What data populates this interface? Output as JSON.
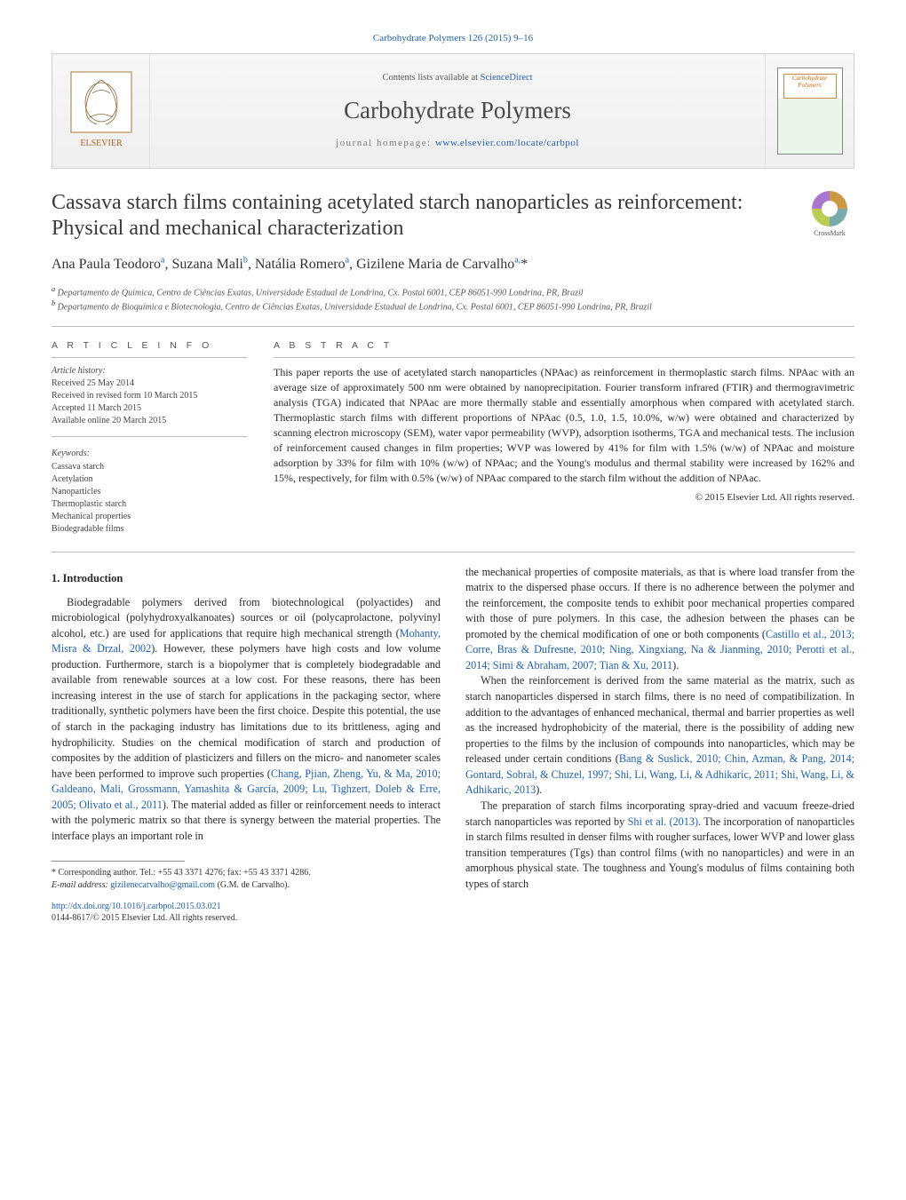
{
  "citation": "Carbohydrate Polymers 126 (2015) 9–16",
  "banner": {
    "contents_prefix": "Contents lists available at ",
    "contents_link": "ScienceDirect",
    "journal": "Carbohydrate Polymers",
    "homepage_prefix": "journal homepage: ",
    "homepage_url": "www.elsevier.com/locate/carbpol",
    "publisher_logo_label": "ELSEVIER"
  },
  "article": {
    "title": "Cassava starch films containing acetylated starch nanoparticles as reinforcement: Physical and mechanical characterization",
    "crossmark_label": "CrossMark"
  },
  "authors": {
    "line_html": "Ana Paula Teodoro<sup>a</sup>, Suzana Mali<sup>b</sup>, Natália Romero<sup>a</sup>, Gizilene Maria de Carvalho<sup>a,</sup>*"
  },
  "affiliations": [
    "a Departamento de Química, Centro de Ciências Exatas, Universidade Estadual de Londrina, Cx. Postal 6001, CEP 86051-990 Londrina, PR, Brazil",
    "b Departamento de Bioquímica e Biotecnologia, Centro de Ciências Exatas, Universidade Estadual de Londrina, Cx. Postal 6001, CEP 86051-990 Londrina, PR, Brazil"
  ],
  "info": {
    "label": "A R T I C L E   I N F O",
    "history_head": "Article history:",
    "history": [
      "Received 25 May 2014",
      "Received in revised form 10 March 2015",
      "Accepted 11 March 2015",
      "Available online 20 March 2015"
    ],
    "keywords_head": "Keywords:",
    "keywords": [
      "Cassava starch",
      "Acetylation",
      "Nanoparticles",
      "Thermoplastic starch",
      "Mechanical properties",
      "Biodegradable films"
    ]
  },
  "abstract": {
    "label": "A B S T R A C T",
    "text": "This paper reports the use of acetylated starch nanoparticles (NPAac) as reinforcement in thermoplastic starch films. NPAac with an average size of approximately 500 nm were obtained by nanoprecipitation. Fourier transform infrared (FTIR) and thermogravimetric analysis (TGA) indicated that NPAac are more thermally stable and essentially amorphous when compared with acetylated starch. Thermoplastic starch films with different proportions of NPAac (0.5, 1.0, 1.5, 10.0%, w/w) were obtained and characterized by scanning electron microscopy (SEM), water vapor permeability (WVP), adsorption isotherms, TGA and mechanical tests. The inclusion of reinforcement caused changes in film properties; WVP was lowered by 41% for film with 1.5% (w/w) of NPAac and moisture adsorption by 33% for film with 10% (w/w) of NPAac; and the Young's modulus and thermal stability were increased by 162% and 15%, respectively, for film with 0.5% (w/w) of NPAac compared to the starch film without the addition of NPAac.",
    "copyright": "© 2015 Elsevier Ltd. All rights reserved."
  },
  "introduction": {
    "heading": "1. Introduction",
    "paragraphs": [
      "Biodegradable polymers derived from biotechnological (polyactides) and microbiological (polyhydroxyalkanoates) sources or oil (polycaprolactone, polyvinyl alcohol, etc.) are used for applications that require high mechanical strength (<span class=\"ref-link\">Mohanty, Misra & Drzal, 2002</span>). However, these polymers have high costs and low volume production. Furthermore, starch is a biopolymer that is completely biodegradable and available from renewable sources at a low cost. For these reasons, there has been increasing interest in the use of starch for applications in the packaging sector, where traditionally, synthetic polymers have been the first choice. Despite this potential, the use of starch in the packaging industry has limitations due to its brittleness, aging and hydrophilicity. Studies on the chemical modification of starch and production of composites by the addition of plasticizers and fillers on the micro- and nanometer scales have been performed to improve such properties (<span class=\"ref-link\">Chang, Pjian, Zheng, Yu, & Ma, 2010; Galdeano, Mali, Grossmann, Yamashita & García, 2009; Lu, Tighzert, Doleb & Erre, 2005; Olivato et al., 2011</span>). The material added as filler or reinforcement needs to interact with the polymeric matrix so that there is synergy between the material properties. The interface plays an important role in",
      "the mechanical properties of composite materials, as that is where load transfer from the matrix to the dispersed phase occurs. If there is no adherence between the polymer and the reinforcement, the composite tends to exhibit poor mechanical properties compared with those of pure polymers. In this case, the adhesion between the phases can be promoted by the chemical modification of one or both components (<span class=\"ref-link\">Castillo et al., 2013; Corre, Bras & Dufresne, 2010; Ning, Xingxiang, Na & Jianming, 2010; Perotti et al., 2014; Simi & Abraham, 2007; Tian & Xu, 2011</span>).",
      "When the reinforcement is derived from the same material as the matrix, such as starch nanoparticles dispersed in starch films, there is no need of compatibilization. In addition to the advantages of enhanced mechanical, thermal and barrier properties as well as the increased hydrophobicity of the material, there is the possibility of adding new properties to the films by the inclusion of compounds into nanoparticles, which may be released under certain conditions (<span class=\"ref-link\">Bang & Suslick, 2010; Chin, Azman, & Pang, 2014; Gontard, Sobral, & Chuzel, 1997; Shi, Li, Wang, Li, & Adhikaric, 2011; Shi, Wang, Li, & Adhikaric, 2013</span>).",
      "The preparation of starch films incorporating spray-dried and vacuum freeze-dried starch nanoparticles was reported by <span class=\"ref-link\">Shi et al. (2013)</span>. The incorporation of nanoparticles in starch films resulted in denser films with rougher surfaces, lower WVP and lower glass transition temperatures (Tgs) than control films (with no nanoparticles) and were in an amorphous physical state. The toughness and Young's modulus of films containing both types of starch"
    ]
  },
  "footnotes": {
    "corresponding": "* Corresponding author. Tel.: +55 43 3371 4276; fax: +55 43 3371 4286.",
    "email_label": "E-mail address: ",
    "email": "gizilenecarvalho@gmail.com",
    "email_owner": " (G.M. de Carvalho)."
  },
  "bottom": {
    "doi": "http://dx.doi.org/10.1016/j.carbpol.2015.03.021",
    "issn_line": "0144-8617/© 2015 Elsevier Ltd. All rights reserved."
  },
  "colors": {
    "link": "#2060b0",
    "text": "#2a2a2a",
    "muted": "#555555",
    "rule": "#bdbdbd"
  },
  "typography": {
    "body_fontsize_pt": 9,
    "title_fontsize_pt": 18,
    "journal_fontsize_pt": 20,
    "abstract_fontsize_pt": 9,
    "info_fontsize_pt": 7.5
  }
}
